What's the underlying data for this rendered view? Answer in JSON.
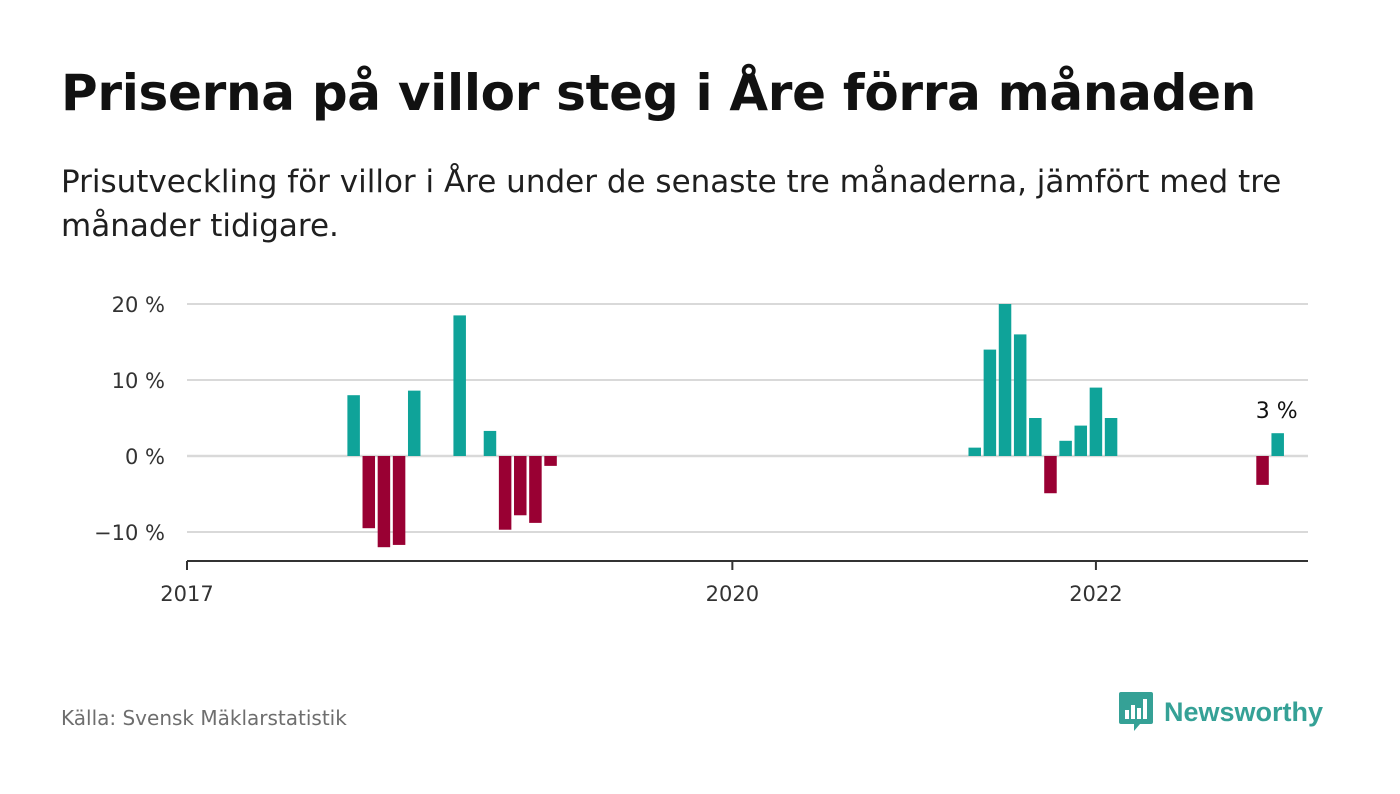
{
  "title": "Priserna på villor steg i Åre förra månaden",
  "subtitle": "Prisutveckling för villor i Åre under de senaste tre månaderna, jämfört med tre månader tidigare.",
  "source": "Källa: Svensk Mäklarstatistik",
  "brand": {
    "name": "Newsworthy",
    "icon": "newsworthy-logo-icon",
    "color": "#35a196"
  },
  "colors": {
    "positive": "#0fa399",
    "negative": "#990033",
    "grid": "#d9d9d9",
    "axis": "#333333"
  },
  "chart_data": {
    "type": "bar",
    "xlabel": "",
    "ylabel": "",
    "ylim": [
      -14,
      20
    ],
    "y_ticks": [
      {
        "value": 20,
        "label": "20 %"
      },
      {
        "value": 10,
        "label": "10 %"
      },
      {
        "value": 0,
        "label": "0 %"
      },
      {
        "value": -10,
        "label": "−10 %"
      }
    ],
    "x_domain": [
      "2017-01",
      "2023-03"
    ],
    "x_ticks": [
      {
        "date": "2017-01",
        "label": "2017"
      },
      {
        "date": "2020-01",
        "label": "2020"
      },
      {
        "date": "2022-01",
        "label": "2022"
      }
    ],
    "series": [
      {
        "points": [
          {
            "date": "2017-12",
            "value": 8
          },
          {
            "date": "2018-01",
            "value": -9.5
          },
          {
            "date": "2018-02",
            "value": -12
          },
          {
            "date": "2018-03",
            "value": -11.7
          },
          {
            "date": "2018-04",
            "value": 8.6
          },
          {
            "date": "2018-07",
            "value": 18.5
          },
          {
            "date": "2018-09",
            "value": 3.3
          },
          {
            "date": "2018-10",
            "value": -9.7
          },
          {
            "date": "2018-11",
            "value": -7.8
          },
          {
            "date": "2018-12",
            "value": -8.8
          },
          {
            "date": "2019-01",
            "value": -1.3
          },
          {
            "date": "2021-05",
            "value": 1.1
          },
          {
            "date": "2021-06",
            "value": 14
          },
          {
            "date": "2021-07",
            "value": 20
          },
          {
            "date": "2021-08",
            "value": 16
          },
          {
            "date": "2021-09",
            "value": 5
          },
          {
            "date": "2021-10",
            "value": -4.9
          },
          {
            "date": "2021-11",
            "value": 2
          },
          {
            "date": "2021-12",
            "value": 4
          },
          {
            "date": "2022-01",
            "value": 9
          },
          {
            "date": "2022-02",
            "value": 5
          },
          {
            "date": "2022-12",
            "value": -3.8
          },
          {
            "date": "2023-01",
            "value": 3
          }
        ]
      }
    ],
    "annotations": [
      {
        "date": "2023-01",
        "value": 3,
        "label": "3 %"
      }
    ]
  }
}
